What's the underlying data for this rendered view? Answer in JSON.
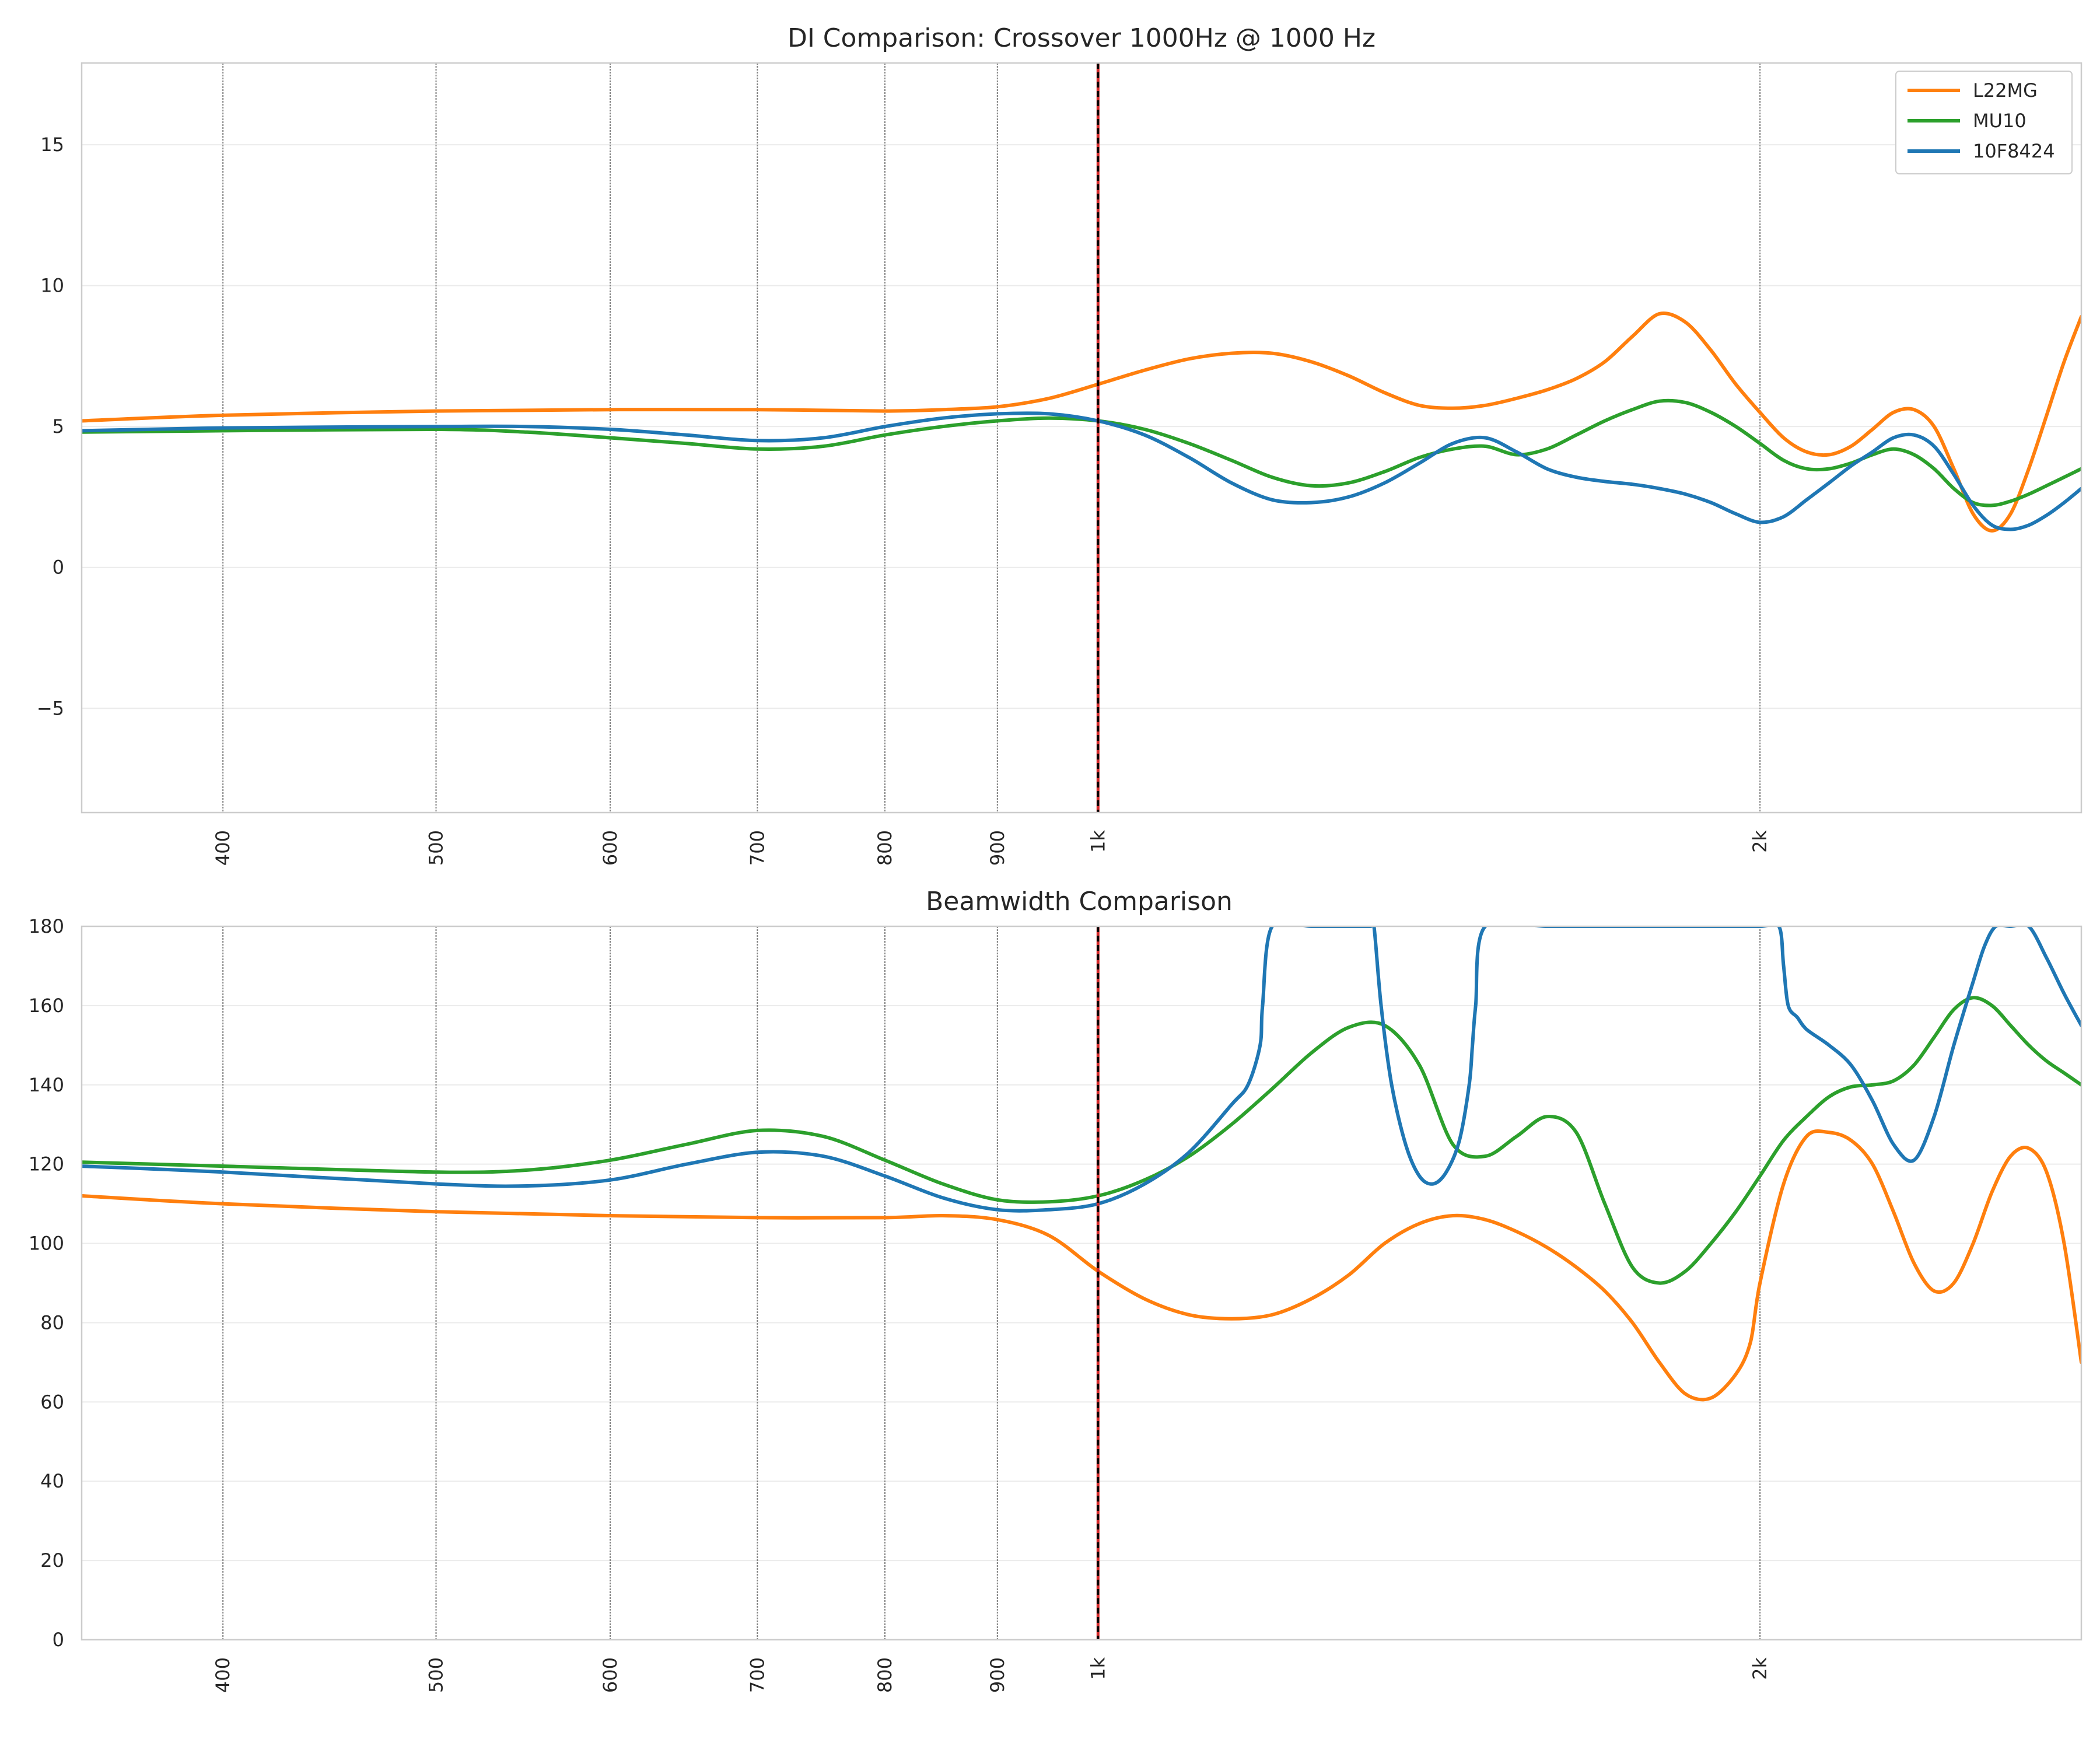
{
  "chart_data": [
    {
      "type": "line",
      "title": "DI Comparison: Crossover 1000Hz @ 1000 Hz",
      "xscale": "log",
      "xlim": [
        345,
        2800
      ],
      "ylim": [
        -8.7,
        17.9
      ],
      "xticks": [
        400,
        500,
        600,
        700,
        800,
        900,
        1000,
        2000
      ],
      "xtick_labels": [
        "400",
        "500",
        "600",
        "700",
        "800",
        "900",
        "1k",
        "2k"
      ],
      "yticks": [
        -5,
        0,
        5,
        10,
        15
      ],
      "ytick_labels": [
        "−5",
        "0",
        "5",
        "10",
        "15"
      ],
      "crossover_line_x": 1000,
      "vertical_grid_x": [
        400,
        500,
        600,
        700,
        800,
        900,
        2000
      ],
      "grid": true,
      "legend_position": "top-right",
      "series": [
        {
          "name": "L22MG",
          "color": "#ff7f0e",
          "x": [
            345,
            400,
            500,
            600,
            700,
            800,
            850,
            900,
            950,
            1000,
            1050,
            1100,
            1150,
            1200,
            1250,
            1300,
            1350,
            1400,
            1450,
            1500,
            1550,
            1600,
            1650,
            1700,
            1750,
            1800,
            1850,
            1900,
            1950,
            2000,
            2050,
            2100,
            2150,
            2200,
            2250,
            2300,
            2350,
            2400,
            2450,
            2500,
            2550,
            2600,
            2650,
            2700,
            2750,
            2800
          ],
          "y": [
            5.2,
            5.4,
            5.55,
            5.6,
            5.6,
            5.55,
            5.6,
            5.7,
            6.0,
            6.5,
            7.0,
            7.4,
            7.6,
            7.6,
            7.3,
            6.8,
            6.2,
            5.75,
            5.65,
            5.75,
            6.0,
            6.3,
            6.7,
            7.3,
            8.2,
            9.0,
            8.7,
            7.7,
            6.5,
            5.5,
            4.6,
            4.1,
            4.0,
            4.3,
            4.9,
            5.5,
            5.6,
            5.0,
            3.5,
            1.9,
            1.3,
            1.9,
            3.5,
            5.4,
            7.3,
            8.9
          ]
        },
        {
          "name": "MU10",
          "color": "#2ca02c",
          "x": [
            345,
            400,
            500,
            550,
            600,
            650,
            700,
            750,
            800,
            850,
            900,
            950,
            1000,
            1050,
            1100,
            1150,
            1200,
            1250,
            1300,
            1350,
            1400,
            1450,
            1500,
            1550,
            1600,
            1650,
            1700,
            1750,
            1800,
            1850,
            1900,
            1950,
            2000,
            2050,
            2100,
            2150,
            2200,
            2250,
            2300,
            2350,
            2400,
            2450,
            2500,
            2550,
            2600,
            2650,
            2700,
            2750,
            2800
          ],
          "y": [
            4.8,
            4.85,
            4.9,
            4.8,
            4.6,
            4.4,
            4.2,
            4.3,
            4.7,
            5.0,
            5.2,
            5.3,
            5.2,
            4.9,
            4.4,
            3.8,
            3.2,
            2.9,
            3.0,
            3.4,
            3.9,
            4.2,
            4.3,
            4.0,
            4.2,
            4.7,
            5.2,
            5.6,
            5.9,
            5.85,
            5.5,
            5.0,
            4.4,
            3.8,
            3.5,
            3.5,
            3.7,
            4.0,
            4.2,
            4.0,
            3.5,
            2.8,
            2.3,
            2.2,
            2.35,
            2.6,
            2.9,
            3.2,
            3.5
          ]
        },
        {
          "name": "10F8424",
          "color": "#1f77b4",
          "x": [
            345,
            400,
            500,
            550,
            600,
            650,
            700,
            750,
            800,
            850,
            900,
            950,
            1000,
            1050,
            1100,
            1150,
            1200,
            1250,
            1300,
            1350,
            1400,
            1450,
            1500,
            1550,
            1600,
            1650,
            1700,
            1750,
            1800,
            1850,
            1900,
            1950,
            2000,
            2050,
            2100,
            2150,
            2200,
            2250,
            2300,
            2350,
            2400,
            2450,
            2500,
            2550,
            2600,
            2650,
            2700,
            2750,
            2800
          ],
          "y": [
            4.85,
            4.95,
            5.0,
            5.0,
            4.9,
            4.7,
            4.5,
            4.6,
            5.0,
            5.3,
            5.45,
            5.45,
            5.2,
            4.7,
            3.9,
            3.0,
            2.4,
            2.3,
            2.5,
            3.0,
            3.7,
            4.4,
            4.6,
            4.1,
            3.5,
            3.2,
            3.05,
            2.95,
            2.8,
            2.6,
            2.3,
            1.9,
            1.6,
            1.8,
            2.4,
            3.0,
            3.6,
            4.1,
            4.6,
            4.7,
            4.3,
            3.3,
            2.2,
            1.5,
            1.35,
            1.5,
            1.85,
            2.3,
            2.8
          ]
        }
      ]
    },
    {
      "type": "line",
      "title": "Beamwidth Comparison",
      "xscale": "log",
      "xlim": [
        345,
        2800
      ],
      "ylim": [
        0,
        180
      ],
      "xticks": [
        400,
        500,
        600,
        700,
        800,
        900,
        1000,
        2000
      ],
      "xtick_labels": [
        "400",
        "500",
        "600",
        "700",
        "800",
        "900",
        "1k",
        "2k"
      ],
      "yticks": [
        0,
        20,
        40,
        60,
        80,
        100,
        120,
        140,
        160,
        180
      ],
      "ytick_labels": [
        "0",
        "20",
        "40",
        "60",
        "80",
        "100",
        "120",
        "140",
        "160",
        "180"
      ],
      "crossover_line_x": 1000,
      "vertical_grid_x": [
        400,
        500,
        600,
        700,
        800,
        900,
        2000
      ],
      "grid": true,
      "series": [
        {
          "name": "L22MG",
          "color": "#ff7f0e",
          "x": [
            345,
            400,
            500,
            600,
            700,
            800,
            850,
            900,
            950,
            1000,
            1050,
            1100,
            1150,
            1200,
            1250,
            1300,
            1350,
            1400,
            1450,
            1500,
            1550,
            1600,
            1650,
            1700,
            1750,
            1800,
            1850,
            1900,
            1950,
            1980,
            2000,
            2050,
            2100,
            2150,
            2200,
            2250,
            2300,
            2350,
            2400,
            2450,
            2500,
            2550,
            2600,
            2650,
            2700,
            2750,
            2800
          ],
          "y": [
            112,
            110,
            108,
            107,
            106.5,
            106.5,
            107,
            106,
            102,
            93,
            86,
            82,
            81,
            82,
            86,
            92,
            100,
            105,
            107,
            106,
            103,
            99,
            94,
            88,
            80,
            70,
            62,
            61,
            67,
            75,
            90,
            115,
            127,
            128,
            126,
            120,
            108,
            95,
            88,
            90,
            100,
            113,
            122,
            124,
            118,
            100,
            70
          ]
        },
        {
          "name": "MU10",
          "color": "#2ca02c",
          "x": [
            345,
            400,
            500,
            550,
            600,
            650,
            700,
            750,
            800,
            850,
            900,
            950,
            1000,
            1050,
            1100,
            1150,
            1200,
            1250,
            1300,
            1350,
            1400,
            1450,
            1500,
            1550,
            1600,
            1650,
            1700,
            1750,
            1800,
            1850,
            1900,
            1950,
            2000,
            2050,
            2100,
            2150,
            2200,
            2250,
            2300,
            2350,
            2400,
            2450,
            2500,
            2550,
            2600,
            2650,
            2700,
            2750,
            2800
          ],
          "y": [
            120.5,
            119.5,
            118,
            118.5,
            121,
            125,
            128.5,
            127,
            121,
            115,
            111,
            110.5,
            112,
            116,
            122,
            130,
            139,
            148,
            154.5,
            155,
            145,
            125,
            122,
            127,
            132,
            128,
            110,
            94,
            90,
            93,
            100,
            108,
            117,
            126,
            132,
            137,
            139.5,
            140,
            141,
            145,
            152,
            159,
            162,
            160,
            155,
            150,
            146,
            143,
            140
          ]
        },
        {
          "name": "10F8424",
          "color": "#1f77b4",
          "x": [
            345,
            400,
            500,
            550,
            600,
            650,
            700,
            750,
            800,
            850,
            900,
            950,
            1000,
            1050,
            1100,
            1150,
            1170,
            1185,
            1188,
            1200,
            1250,
            1300,
            1330,
            1335,
            1345,
            1360,
            1380,
            1400,
            1420,
            1440,
            1460,
            1475,
            1480,
            1485,
            1500,
            1600,
            1700,
            1800,
            1900,
            2000,
            2040,
            2050,
            2060,
            2080,
            2100,
            2150,
            2200,
            2250,
            2300,
            2350,
            2400,
            2450,
            2500,
            2530,
            2560,
            2600,
            2650,
            2700,
            2750,
            2800
          ],
          "y": [
            119.5,
            118,
            115,
            114.5,
            116,
            120,
            123,
            122,
            117,
            111.5,
            108.5,
            108.5,
            110,
            115,
            123,
            135,
            140,
            150,
            160,
            180,
            180,
            180,
            180,
            180,
            160,
            140,
            125,
            117,
            115,
            118,
            126,
            140,
            150,
            160,
            180,
            180,
            180,
            180,
            180,
            180,
            180,
            170,
            160,
            157,
            154,
            150,
            145,
            136,
            125,
            121,
            132,
            150,
            166,
            175,
            180,
            180,
            180,
            172,
            163,
            155
          ]
        }
      ]
    }
  ]
}
